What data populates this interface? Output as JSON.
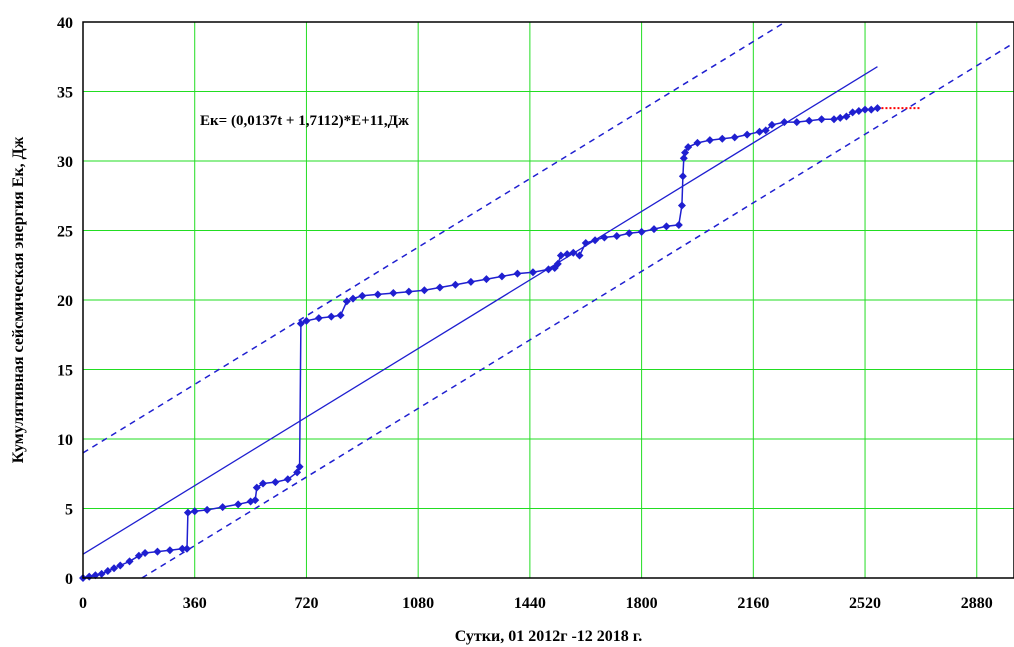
{
  "chart_data": {
    "type": "line",
    "title": "",
    "xlabel": "Сутки, 01 2012г -12 2018 г.",
    "ylabel": "Кумулятивная сейсмическая энергия  Ек, Дж",
    "xlim": [
      0,
      3000
    ],
    "ylim": [
      0,
      40
    ],
    "x_ticks": [
      "0",
      "360",
      "720",
      "1080",
      "1440",
      "1800",
      "2160",
      "2520",
      "2880"
    ],
    "y_ticks": [
      "0",
      "5",
      "10",
      "15",
      "20",
      "25",
      "30",
      "35",
      "40"
    ],
    "grid": true,
    "annotation": "Ек= (0,0137t + 1,7112)*E+11,Дж",
    "colors": {
      "series": "#1f1fd0",
      "grid": "#22dd22",
      "forecast": "#ff0000"
    },
    "series": [
      {
        "kind": "cumulative",
        "x": [
          0,
          20,
          40,
          60,
          80,
          100,
          120,
          150,
          180,
          200,
          240,
          280,
          320,
          335,
          338,
          360,
          400,
          450,
          500,
          540,
          555,
          560,
          580,
          620,
          660,
          690,
          698,
          702,
          720,
          760,
          800,
          830,
          850,
          870,
          900,
          950,
          1000,
          1050,
          1100,
          1150,
          1200,
          1250,
          1300,
          1350,
          1400,
          1450,
          1500,
          1520,
          1530,
          1540,
          1560,
          1580,
          1600,
          1620,
          1650,
          1680,
          1720,
          1760,
          1800,
          1840,
          1880,
          1920,
          1930,
          1933,
          1936,
          1940,
          1950,
          1980,
          2020,
          2060,
          2100,
          2140,
          2180,
          2200,
          2220,
          2260,
          2300,
          2340,
          2380,
          2420,
          2440,
          2460,
          2480,
          2500,
          2520,
          2540,
          2560
        ],
        "y": [
          0,
          0.1,
          0.2,
          0.3,
          0.5,
          0.7,
          0.9,
          1.2,
          1.6,
          1.8,
          1.9,
          2.0,
          2.1,
          2.1,
          4.7,
          4.8,
          4.9,
          5.1,
          5.3,
          5.5,
          5.6,
          6.5,
          6.8,
          6.9,
          7.1,
          7.6,
          8.0,
          18.3,
          18.5,
          18.7,
          18.8,
          18.9,
          19.9,
          20.1,
          20.3,
          20.4,
          20.5,
          20.6,
          20.7,
          20.9,
          21.1,
          21.3,
          21.5,
          21.7,
          21.9,
          22.0,
          22.2,
          22.3,
          22.6,
          23.2,
          23.3,
          23.4,
          23.2,
          24.1,
          24.3,
          24.5,
          24.6,
          24.8,
          24.9,
          25.1,
          25.3,
          25.4,
          26.8,
          28.9,
          30.2,
          30.6,
          31.0,
          31.3,
          31.5,
          31.6,
          31.7,
          31.9,
          32.1,
          32.2,
          32.6,
          32.8,
          32.8,
          32.9,
          33.0,
          33.0,
          33.1,
          33.2,
          33.5,
          33.6,
          33.7,
          33.7,
          33.8
        ]
      },
      {
        "kind": "trend",
        "slope": 0.0137,
        "intercept": 1.7112,
        "x_range": [
          0,
          2560
        ]
      },
      {
        "kind": "upper-bound",
        "slope": 0.0137,
        "intercept": 9.0
      },
      {
        "kind": "lower-bound",
        "slope": 0.0137,
        "intercept": -2.6
      },
      {
        "kind": "forecast",
        "x": [
          2560,
          2700
        ],
        "y": [
          33.8,
          33.8
        ]
      }
    ]
  }
}
